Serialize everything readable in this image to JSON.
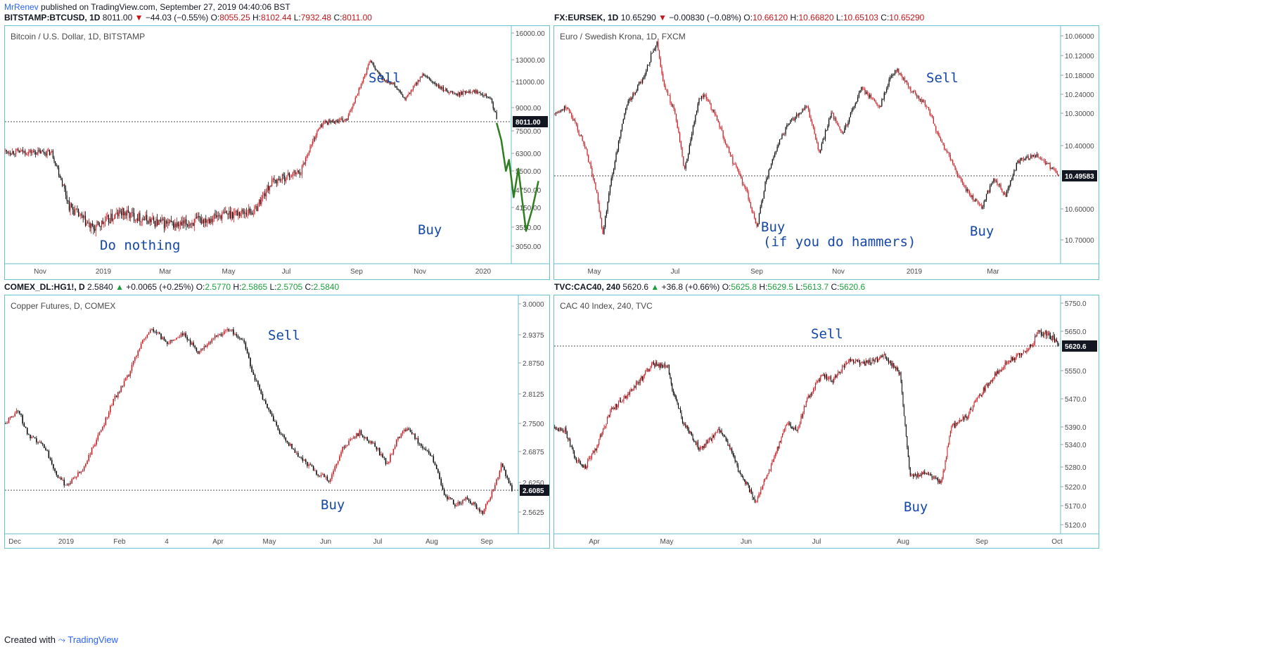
{
  "topbar": {
    "author": "MrRenev",
    "text": " published on TradingView.com, September 27, 2019 04:40:06 BST"
  },
  "footer": {
    "created": "Created with",
    "brand": "TradingView"
  },
  "colors": {
    "up": "#c8171d",
    "down": "#000000",
    "border": "#66c2cc",
    "annotation": "#1447a8",
    "pred": "#2e7d1f"
  },
  "chart_data": [
    {
      "type": "candlestick",
      "header": {
        "symbol": "BITSTAMP:BTCUSD, 1D",
        "last": "8011.00",
        "arrow": "▼",
        "change": "−44.03 (−0.55%)",
        "o": "8055.25",
        "h": "8102.44",
        "l": "7932.48",
        "c": "8011.00",
        "dir": "neg"
      },
      "title": "Bitcoin / U.S. Dollar, 1D, BITSTAMP",
      "y_ticks": [
        "16000.00",
        "13000.00",
        "11000.00",
        "9000.00",
        "7500.00",
        "6300.00",
        "5500.00",
        "4750.00",
        "4150.00",
        "3550.00",
        "3050.00"
      ],
      "price_label": "8011.00",
      "x_ticks": [
        "Nov",
        "2019",
        "Mar",
        "May",
        "Jul",
        "Sep",
        "Nov",
        "2020"
      ],
      "annotations": [
        "Do nothing",
        "Sell",
        "Buy"
      ],
      "series": {
        "start": 6400,
        "anchors": [
          [
            0,
            6400
          ],
          [
            40,
            6350
          ],
          [
            45,
            5600
          ],
          [
            55,
            4200
          ],
          [
            75,
            3500
          ],
          [
            90,
            3800
          ],
          [
            100,
            4000
          ],
          [
            130,
            3700
          ],
          [
            150,
            3600
          ],
          [
            190,
            3950
          ],
          [
            215,
            4050
          ],
          [
            230,
            5050
          ],
          [
            255,
            5500
          ],
          [
            270,
            7600
          ],
          [
            275,
            8050
          ],
          [
            295,
            8200
          ],
          [
            310,
            11500
          ],
          [
            315,
            13000
          ],
          [
            325,
            11200
          ],
          [
            335,
            10800
          ],
          [
            345,
            9600
          ],
          [
            360,
            11600
          ],
          [
            375,
            10500
          ],
          [
            390,
            10000
          ],
          [
            400,
            10300
          ],
          [
            410,
            10200
          ],
          [
            418,
            9800
          ],
          [
            425,
            8100
          ]
        ],
        "count": 425
      },
      "prediction": [
        [
          8011,
          0
        ],
        [
          7000,
          3
        ],
        [
          5500,
          6
        ],
        [
          6000,
          8
        ],
        [
          4500,
          11
        ],
        [
          5600,
          14
        ],
        [
          3450,
          19
        ],
        [
          4100,
          23
        ],
        [
          5100,
          27
        ]
      ]
    },
    {
      "type": "candlestick",
      "header": {
        "symbol": "FX:EURSEK, 1D",
        "last": "10.65290",
        "arrow": "▼",
        "change": "−0.00830 (−0.08%)",
        "o": "10.66120",
        "h": "10.66820",
        "l": "10.65103",
        "c": "10.65290",
        "dir": "neg"
      },
      "title": "Euro / Swedish Krona, 1D, FXCM",
      "y_ticks": [
        "10.06000",
        "10.12000",
        "10.18000",
        "10.24000",
        "10.30000",
        "10.40000",
        "10.49583",
        "10.60000",
        "10.70000"
      ],
      "price_label": "10.49583",
      "x_ticks": [
        "May",
        "Jul",
        "Sep",
        "Nov",
        "2019",
        "Mar"
      ],
      "annotations": [
        "Sell",
        "Buy",
        "(if you do hammers)",
        "Buy"
      ],
      "series": {
        "start": 10.3,
        "anchors": [
          [
            0,
            10.3
          ],
          [
            10,
            10.28
          ],
          [
            25,
            10.4
          ],
          [
            35,
            10.55
          ],
          [
            40,
            10.68
          ],
          [
            45,
            10.55
          ],
          [
            55,
            10.35
          ],
          [
            60,
            10.27
          ],
          [
            75,
            10.18
          ],
          [
            80,
            10.12
          ],
          [
            85,
            10.08
          ],
          [
            90,
            10.2
          ],
          [
            100,
            10.3
          ],
          [
            108,
            10.48
          ],
          [
            120,
            10.25
          ],
          [
            125,
            10.24
          ],
          [
            135,
            10.32
          ],
          [
            148,
            10.45
          ],
          [
            160,
            10.55
          ],
          [
            168,
            10.66
          ],
          [
            175,
            10.52
          ],
          [
            185,
            10.4
          ],
          [
            195,
            10.33
          ],
          [
            210,
            10.28
          ],
          [
            220,
            10.42
          ],
          [
            230,
            10.3
          ],
          [
            240,
            10.36
          ],
          [
            255,
            10.22
          ],
          [
            270,
            10.28
          ],
          [
            280,
            10.18
          ],
          [
            285,
            10.16
          ],
          [
            295,
            10.22
          ],
          [
            310,
            10.28
          ],
          [
            320,
            10.38
          ],
          [
            330,
            10.45
          ],
          [
            340,
            10.53
          ],
          [
            355,
            10.6
          ],
          [
            365,
            10.5
          ],
          [
            375,
            10.56
          ],
          [
            385,
            10.45
          ],
          [
            400,
            10.43
          ],
          [
            410,
            10.46
          ],
          [
            420,
            10.5
          ]
        ],
        "count": 420
      }
    },
    {
      "type": "candlestick",
      "header": {
        "symbol": "COMEX_DL:HG1!, D",
        "last": "2.5840",
        "arrow": "▲",
        "change": "+0.0065 (+0.25%)",
        "o": "2.5770",
        "h": "2.5865",
        "l": "2.5705",
        "c": "2.5840",
        "dir": "pos"
      },
      "title": "Copper Futures, D, COMEX",
      "y_ticks": [
        "3.0000",
        "2.9375",
        "2.8750",
        "2.8125",
        "2.7500",
        "2.6875",
        "2.6250",
        "2.6085",
        "2.5625"
      ],
      "price_label": "2.6085",
      "x_ticks": [
        "Dec",
        "2019",
        "Feb",
        "4",
        "Apr",
        "May",
        "Jun",
        "Jul",
        "Aug",
        "Sep"
      ],
      "annotations": [
        "Sell",
        "Buy"
      ],
      "series": {
        "start": 2.75,
        "anchors": [
          [
            0,
            2.75
          ],
          [
            8,
            2.78
          ],
          [
            15,
            2.72
          ],
          [
            25,
            2.7
          ],
          [
            35,
            2.63
          ],
          [
            40,
            2.62
          ],
          [
            50,
            2.65
          ],
          [
            60,
            2.72
          ],
          [
            70,
            2.8
          ],
          [
            80,
            2.85
          ],
          [
            88,
            2.92
          ],
          [
            95,
            2.95
          ],
          [
            105,
            2.92
          ],
          [
            115,
            2.94
          ],
          [
            125,
            2.9
          ],
          [
            135,
            2.93
          ],
          [
            145,
            2.95
          ],
          [
            155,
            2.92
          ],
          [
            160,
            2.86
          ],
          [
            170,
            2.78
          ],
          [
            180,
            2.72
          ],
          [
            190,
            2.68
          ],
          [
            200,
            2.65
          ],
          [
            210,
            2.63
          ],
          [
            220,
            2.7
          ],
          [
            230,
            2.73
          ],
          [
            240,
            2.7
          ],
          [
            248,
            2.66
          ],
          [
            255,
            2.72
          ],
          [
            262,
            2.74
          ],
          [
            270,
            2.7
          ],
          [
            278,
            2.67
          ],
          [
            285,
            2.6
          ],
          [
            292,
            2.58
          ],
          [
            300,
            2.59
          ],
          [
            310,
            2.56
          ],
          [
            318,
            2.62
          ],
          [
            322,
            2.66
          ],
          [
            330,
            2.6
          ]
        ],
        "count": 330
      }
    },
    {
      "type": "candlestick",
      "header": {
        "symbol": "TVC:CAC40, 240",
        "last": "5620.6",
        "arrow": "▲",
        "change": "+36.8 (+0.66%)",
        "o": "5625.8",
        "h": "5629.5",
        "l": "5613.7",
        "c": "5620.6",
        "dir": "pos"
      },
      "title": "CAC 40 Index, 240, TVC",
      "y_ticks": [
        "5750.0",
        "5650.0",
        "5620.6",
        "5550.0",
        "5470.0",
        "5390.0",
        "5340.0",
        "5280.0",
        "5220.0",
        "5170.0",
        "5120.0"
      ],
      "price_label": "5620.6",
      "x_ticks": [
        "Apr",
        "May",
        "Jun",
        "Jul",
        "Aug",
        "Sep",
        "Oct"
      ],
      "annotations": [
        "Sell",
        "Buy"
      ],
      "series": {
        "start": 5390,
        "anchors": [
          [
            0,
            5390
          ],
          [
            10,
            5380
          ],
          [
            20,
            5300
          ],
          [
            30,
            5280
          ],
          [
            40,
            5330
          ],
          [
            55,
            5440
          ],
          [
            70,
            5480
          ],
          [
            85,
            5530
          ],
          [
            95,
            5570
          ],
          [
            110,
            5560
          ],
          [
            115,
            5490
          ],
          [
            125,
            5400
          ],
          [
            140,
            5330
          ],
          [
            150,
            5350
          ],
          [
            160,
            5380
          ],
          [
            170,
            5330
          ],
          [
            180,
            5260
          ],
          [
            195,
            5180
          ],
          [
            210,
            5280
          ],
          [
            225,
            5400
          ],
          [
            235,
            5380
          ],
          [
            245,
            5470
          ],
          [
            260,
            5540
          ],
          [
            270,
            5520
          ],
          [
            285,
            5580
          ],
          [
            300,
            5570
          ],
          [
            320,
            5590
          ],
          [
            330,
            5560
          ],
          [
            335,
            5540
          ],
          [
            345,
            5250
          ],
          [
            360,
            5260
          ],
          [
            375,
            5230
          ],
          [
            385,
            5390
          ],
          [
            400,
            5420
          ],
          [
            410,
            5470
          ],
          [
            425,
            5530
          ],
          [
            440,
            5580
          ],
          [
            455,
            5600
          ],
          [
            470,
            5650
          ],
          [
            480,
            5640
          ],
          [
            490,
            5620
          ]
        ],
        "count": 490
      }
    }
  ]
}
